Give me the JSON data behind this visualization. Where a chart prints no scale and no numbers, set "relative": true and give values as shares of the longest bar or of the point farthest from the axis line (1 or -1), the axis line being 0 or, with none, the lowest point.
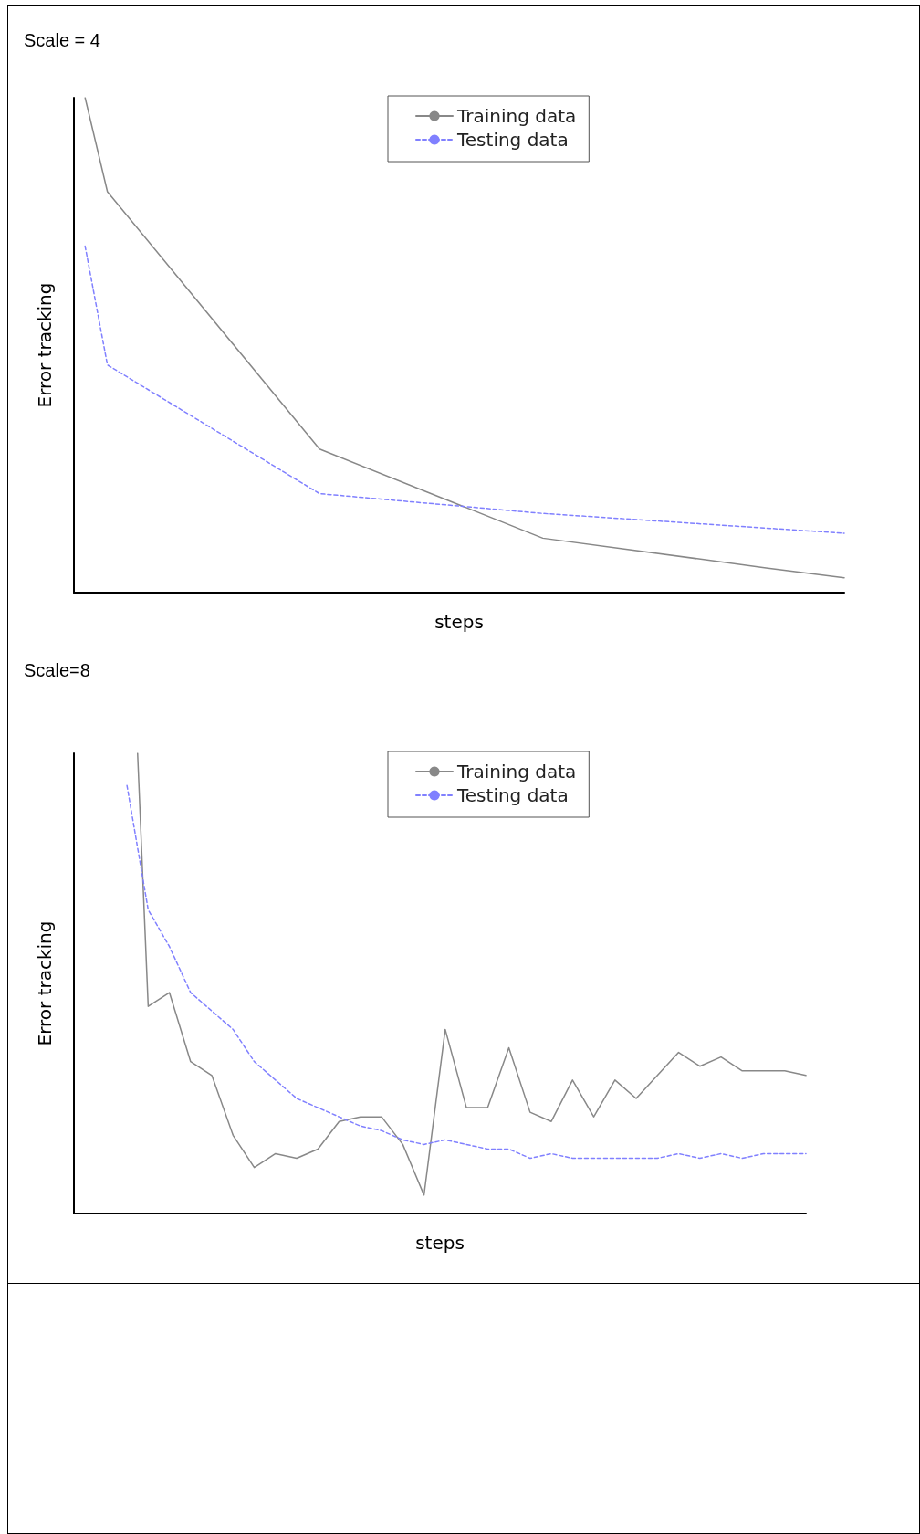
{
  "chart_data": [
    {
      "type": "line",
      "title": "Scale = 4",
      "xlabel": "steps",
      "ylabel": "Error tracking",
      "relative": true,
      "legend": "top",
      "marker": "none",
      "categories": [
        null,
        null,
        null,
        null,
        null,
        null,
        null,
        null,
        null,
        null,
        null,
        null,
        null,
        null,
        null,
        null,
        null,
        null,
        null,
        null,
        null,
        null,
        null,
        null,
        null,
        null,
        null,
        null,
        null,
        null,
        null,
        null,
        null,
        null,
        null,
        null,
        null,
        null,
        null,
        null,
        null,
        null,
        null,
        null,
        null,
        null,
        null,
        null,
        null,
        null,
        null,
        null,
        null,
        null,
        null,
        null,
        null,
        null,
        null,
        null,
        null,
        null,
        null,
        null,
        null,
        null,
        null,
        null,
        null,
        null
      ],
      "series": [
        {
          "name": "Training data",
          "color": "#888888",
          "line_style": "solid",
          "values": [
            null,
            1.0,
            null,
            0.81,
            null,
            null,
            null,
            null,
            null,
            null,
            null,
            null,
            null,
            null,
            null,
            null,
            null,
            null,
            null,
            null,
            null,
            null,
            0.29,
            null,
            null,
            null,
            null,
            null,
            null,
            null,
            null,
            null,
            null,
            null,
            null,
            null,
            null,
            null,
            null,
            null,
            null,
            null,
            0.11,
            null,
            null,
            null,
            null,
            null,
            null,
            null,
            null,
            null,
            null,
            null,
            null,
            null,
            null,
            null,
            null,
            null,
            null,
            null,
            0.05,
            null,
            null,
            null,
            null,
            null,
            null,
            0.03
          ]
        },
        {
          "name": "Testing data",
          "color": "#8080ff",
          "line_style": "dashed",
          "values": [
            null,
            0.7,
            null,
            0.46,
            null,
            null,
            null,
            null,
            null,
            null,
            null,
            null,
            null,
            null,
            null,
            null,
            null,
            null,
            null,
            null,
            null,
            null,
            0.2,
            null,
            null,
            null,
            null,
            null,
            null,
            null,
            null,
            null,
            null,
            null,
            null,
            null,
            null,
            null,
            null,
            null,
            null,
            null,
            0.16,
            null,
            null,
            null,
            null,
            null,
            null,
            null,
            null,
            null,
            null,
            null,
            null,
            null,
            null,
            null,
            null,
            null,
            null,
            null,
            null,
            null,
            null,
            null,
            null,
            null,
            null,
            0.12
          ]
        }
      ]
    },
    {
      "type": "line",
      "title": "Scale=8",
      "xlabel": "steps",
      "ylabel": "Error tracking",
      "relative": true,
      "legend": "top",
      "marker": "none",
      "categories": [
        null,
        null,
        null,
        null,
        null,
        null,
        null,
        null,
        null,
        null,
        null,
        null,
        null,
        null,
        null,
        null,
        null,
        null,
        null,
        null,
        null,
        null,
        null,
        null,
        null,
        null,
        null,
        null,
        null,
        null,
        null,
        null,
        null,
        null,
        null,
        null,
        null,
        null,
        null,
        null,
        null,
        null,
        null,
        null,
        null,
        null,
        null,
        null,
        null,
        null,
        null,
        null,
        null,
        null,
        null,
        null,
        null,
        null,
        null,
        null,
        null,
        null,
        null,
        null,
        null,
        null,
        null,
        null,
        null,
        null
      ],
      "series": [
        {
          "name": "Training data",
          "color": "#888888",
          "line_style": "solid",
          "values": [
            null,
            null,
            null,
            null,
            null,
            null,
            1.0,
            0.45,
            null,
            0.48,
            null,
            0.33,
            null,
            0.3,
            null,
            0.17,
            null,
            0.1,
            null,
            0.13,
            null,
            0.12,
            null,
            0.14,
            null,
            0.2,
            null,
            0.21,
            null,
            0.21,
            null,
            0.15,
            null,
            0.04,
            null,
            0.4,
            null,
            0.23,
            null,
            0.23,
            null,
            0.36,
            null,
            0.22,
            null,
            0.2,
            null,
            0.29,
            null,
            0.21,
            null,
            0.29,
            null,
            0.25,
            null,
            0.3,
            null,
            0.35,
            null,
            0.32,
            null,
            0.34,
            null,
            0.31,
            null,
            0.31,
            null,
            0.31,
            null,
            0.3
          ]
        },
        {
          "name": "Testing data",
          "color": "#8080ff",
          "line_style": "dashed",
          "values": [
            null,
            null,
            null,
            null,
            null,
            0.93,
            null,
            0.66,
            null,
            0.58,
            null,
            0.48,
            null,
            0.44,
            null,
            0.4,
            null,
            0.33,
            null,
            0.29,
            null,
            0.25,
            null,
            0.23,
            null,
            0.21,
            null,
            0.19,
            null,
            0.18,
            null,
            0.16,
            null,
            0.15,
            null,
            0.16,
            null,
            0.15,
            null,
            0.14,
            null,
            0.14,
            null,
            0.12,
            null,
            0.13,
            null,
            0.12,
            null,
            0.12,
            null,
            0.12,
            null,
            0.12,
            null,
            0.12,
            null,
            0.13,
            null,
            0.12,
            null,
            0.13,
            null,
            0.12,
            null,
            0.13,
            null,
            0.13,
            null,
            0.13
          ]
        }
      ]
    }
  ]
}
